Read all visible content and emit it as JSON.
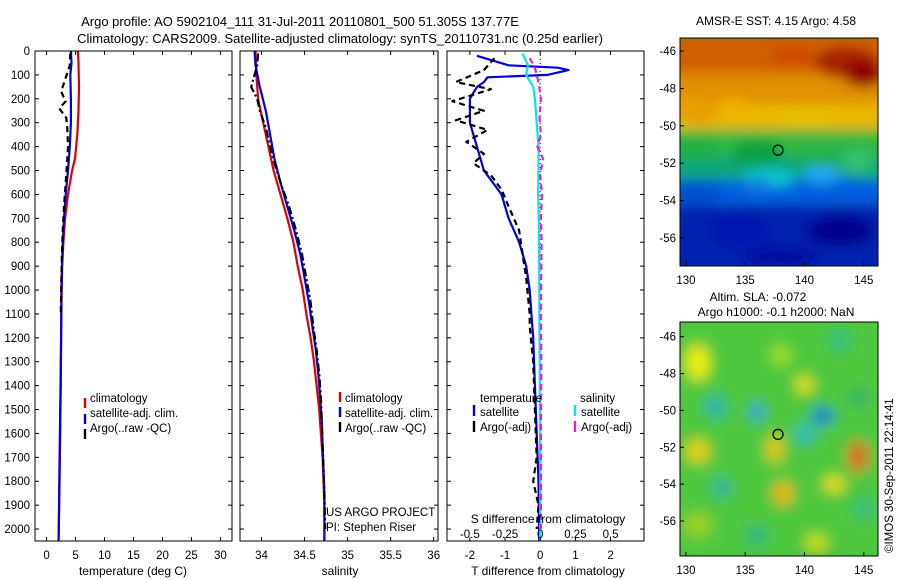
{
  "title_line1": "Argo profile: AO 5902104_111 31-Jul-2011 20110801_500 51.305S 137.77E",
  "title_line2": "Climatology: CARS2009. Satellite-adjusted climatology: synTS_20110731.nc (0.25d earlier)",
  "side_credit": "©IMOS 30-Sep-2011 22:14:41",
  "chart_data": [
    {
      "id": "temperature",
      "type": "line",
      "xlabel": "temperature (deg C)",
      "ylabel": "",
      "xlim": [
        -2,
        32
      ],
      "ylim": [
        2050,
        0
      ],
      "xticks": [
        0,
        5,
        10,
        15,
        20,
        25,
        30
      ],
      "yticks": [
        0,
        100,
        200,
        300,
        400,
        500,
        600,
        700,
        800,
        900,
        1000,
        1100,
        1200,
        1300,
        1400,
        1500,
        1600,
        1700,
        1800,
        1900,
        2000
      ],
      "legend": [
        "climatology",
        "satellite-adj. clim.",
        "Argo(..raw -QC)"
      ],
      "series": [
        {
          "name": "climatology",
          "color": "#e00000",
          "dash": "solid",
          "points": [
            [
              5.4,
              0
            ],
            [
              5.5,
              50
            ],
            [
              5.6,
              150
            ],
            [
              5.5,
              250
            ],
            [
              5.3,
              350
            ],
            [
              4.9,
              450
            ],
            [
              4.4,
              500
            ],
            [
              3.7,
              600
            ],
            [
              3.2,
              700
            ],
            [
              2.9,
              800
            ],
            [
              2.7,
              900
            ],
            [
              2.6,
              1000
            ],
            [
              2.5,
              1200
            ],
            [
              2.45,
              1400
            ],
            [
              2.35,
              1600
            ],
            [
              2.25,
              1800
            ],
            [
              2.1,
              2000
            ],
            [
              2.05,
              2050
            ]
          ]
        },
        {
          "name": "satellite-adj. clim.",
          "color": "#0000e0",
          "dash": "solid",
          "points": [
            [
              4.2,
              0
            ],
            [
              4.3,
              50
            ],
            [
              4.1,
              100
            ],
            [
              4.2,
              200
            ],
            [
              4.2,
              300
            ],
            [
              4.0,
              400
            ],
            [
              3.7,
              500
            ],
            [
              3.3,
              600
            ],
            [
              3.0,
              700
            ],
            [
              2.8,
              800
            ],
            [
              2.65,
              900
            ],
            [
              2.55,
              1000
            ],
            [
              2.5,
              1200
            ],
            [
              2.4,
              1400
            ],
            [
              2.3,
              1600
            ],
            [
              2.2,
              1800
            ],
            [
              2.1,
              2000
            ],
            [
              2.05,
              2050
            ]
          ]
        },
        {
          "name": "Argo(..raw -QC)",
          "color": "#000000",
          "dash": "dash",
          "points": [
            [
              4.1,
              10
            ],
            [
              4.0,
              60
            ],
            [
              3.2,
              120
            ],
            [
              2.5,
              170
            ],
            [
              3.3,
              210
            ],
            [
              2.2,
              240
            ],
            [
              3.4,
              280
            ],
            [
              3.6,
              330
            ],
            [
              3.7,
              400
            ],
            [
              3.5,
              480
            ],
            [
              3.3,
              550
            ],
            [
              3.0,
              650
            ],
            [
              2.8,
              750
            ],
            [
              2.65,
              850
            ],
            [
              2.55,
              950
            ],
            [
              2.45,
              1100
            ]
          ]
        }
      ]
    },
    {
      "id": "salinity",
      "type": "line",
      "xlabel": "salinity",
      "ylabel": "",
      "xlim": [
        33.75,
        36.05
      ],
      "ylim": [
        2050,
        0
      ],
      "xticks": [
        34,
        34.5,
        35,
        35.5,
        36
      ],
      "xticklabels": [
        "34",
        "34.5",
        "35",
        "35.5",
        "36"
      ],
      "legend": [
        "climatology",
        "satellite-adj. clim.",
        "Argo(..raw -QC)"
      ],
      "annotations": [
        "US ARGO PROJECT",
        "PI: Stephen Riser"
      ],
      "series": [
        {
          "name": "climatology",
          "color": "#e00000",
          "dash": "solid",
          "points": [
            [
              33.93,
              0
            ],
            [
              33.94,
              100
            ],
            [
              33.96,
              200
            ],
            [
              34.02,
              300
            ],
            [
              34.08,
              400
            ],
            [
              34.14,
              500
            ],
            [
              34.22,
              600
            ],
            [
              34.3,
              700
            ],
            [
              34.37,
              800
            ],
            [
              34.42,
              900
            ],
            [
              34.48,
              1000
            ],
            [
              34.52,
              1100
            ],
            [
              34.57,
              1200
            ],
            [
              34.61,
              1300
            ],
            [
              34.64,
              1400
            ],
            [
              34.67,
              1500
            ],
            [
              34.69,
              1600
            ],
            [
              34.71,
              1700
            ],
            [
              34.72,
              1800
            ],
            [
              34.73,
              1900
            ],
            [
              34.73,
              2050
            ]
          ]
        },
        {
          "name": "satellite-adj. clim.",
          "color": "#0000e0",
          "dash": "solid",
          "points": [
            [
              33.92,
              0
            ],
            [
              33.93,
              60
            ],
            [
              33.98,
              150
            ],
            [
              34.05,
              250
            ],
            [
              34.1,
              350
            ],
            [
              34.15,
              450
            ],
            [
              34.22,
              550
            ],
            [
              34.3,
              650
            ],
            [
              34.38,
              750
            ],
            [
              34.45,
              850
            ],
            [
              34.5,
              950
            ],
            [
              34.55,
              1050
            ],
            [
              34.59,
              1150
            ],
            [
              34.63,
              1250
            ],
            [
              34.66,
              1350
            ],
            [
              34.68,
              1450
            ],
            [
              34.7,
              1550
            ],
            [
              34.71,
              1650
            ],
            [
              34.72,
              1750
            ],
            [
              34.73,
              1850
            ],
            [
              34.73,
              2050
            ]
          ]
        },
        {
          "name": "Argo(..raw -QC)",
          "color": "#000000",
          "dash": "dashdot",
          "points": [
            [
              33.96,
              10
            ],
            [
              33.95,
              60
            ],
            [
              33.88,
              150
            ],
            [
              33.95,
              200
            ],
            [
              33.98,
              250
            ],
            [
              34.05,
              320
            ],
            [
              34.1,
              400
            ],
            [
              34.15,
              470
            ],
            [
              34.22,
              550
            ],
            [
              34.32,
              650
            ],
            [
              34.4,
              750
            ],
            [
              34.47,
              850
            ],
            [
              34.52,
              950
            ],
            [
              34.57,
              1050
            ],
            [
              34.6,
              1150
            ],
            [
              34.64,
              1250
            ],
            [
              34.67,
              1350
            ],
            [
              34.69,
              1450
            ],
            [
              34.7,
              1550
            ],
            [
              34.71,
              1650
            ],
            [
              34.72,
              1750
            ],
            [
              34.73,
              1850
            ],
            [
              34.74,
              2000
            ]
          ]
        }
      ]
    },
    {
      "id": "difference",
      "type": "line",
      "xlabel": "T difference from climatology",
      "xlabel_top": "S difference from climatology",
      "xlim": [
        -2.65,
        2.95
      ],
      "ylim": [
        2050,
        0
      ],
      "xticks": [
        -2,
        -1,
        0,
        1,
        2
      ],
      "xticklabels": [
        "-2",
        "-1",
        "0",
        "1",
        "2"
      ],
      "sticks": [
        -0.5,
        -0.25,
        0,
        0.25,
        0.5
      ],
      "sticklabels": [
        "-0.5",
        "-0.25",
        "0",
        "0.25",
        "0.5"
      ],
      "legend_headers": [
        "temperature",
        "salinity"
      ],
      "legend": [
        "satellite",
        "Argo(-adj)",
        "satellite",
        "Argo(-adj)"
      ],
      "series": [
        {
          "name": "satellite",
          "color": "#0000e0",
          "dash": "solid",
          "points": [
            [
              -1.8,
              20
            ],
            [
              -0.9,
              60
            ],
            [
              0.5,
              70
            ],
            [
              0.8,
              80
            ],
            [
              0.2,
              100
            ],
            [
              -1.5,
              110
            ],
            [
              -1.6,
              130
            ],
            [
              -1.8,
              150
            ],
            [
              -2.0,
              200
            ],
            [
              -2.0,
              300
            ],
            [
              -1.8,
              400
            ],
            [
              -1.6,
              500
            ],
            [
              -1.3,
              560
            ],
            [
              -1.1,
              600
            ],
            [
              -0.9,
              700
            ],
            [
              -0.6,
              800
            ],
            [
              -0.4,
              900
            ],
            [
              -0.3,
              1000
            ],
            [
              -0.25,
              1100
            ],
            [
              -0.2,
              1200
            ],
            [
              -0.15,
              1400
            ],
            [
              -0.1,
              1600
            ],
            [
              -0.05,
              1800
            ],
            [
              -0.03,
              2050
            ]
          ]
        },
        {
          "name": "Argo(-adj)",
          "color": "#000000",
          "dash": "dash",
          "points": [
            [
              -1.3,
              30
            ],
            [
              -1.6,
              80
            ],
            [
              -2.4,
              130
            ],
            [
              -1.4,
              160
            ],
            [
              -2.5,
              210
            ],
            [
              -1.6,
              250
            ],
            [
              -2.4,
              290
            ],
            [
              -1.5,
              330
            ],
            [
              -2.1,
              380
            ],
            [
              -1.6,
              430
            ],
            [
              -1.9,
              470
            ],
            [
              -1.4,
              520
            ],
            [
              -1.1,
              580
            ],
            [
              -0.9,
              650
            ],
            [
              -0.6,
              750
            ],
            [
              -0.5,
              850
            ],
            [
              -0.4,
              950
            ],
            [
              -0.3,
              1100
            ],
            [
              -0.3,
              1150
            ],
            [
              -0.2,
              1300
            ],
            [
              -0.15,
              1500
            ],
            [
              -0.1,
              1700
            ],
            [
              -0.2,
              1800
            ],
            [
              -0.05,
              1900
            ],
            [
              -0.1,
              2000
            ]
          ]
        },
        {
          "name": "satellite",
          "color": "#00e8e8",
          "dash": "solid",
          "points": [
            [
              -0.5,
              10
            ],
            [
              -0.35,
              60
            ],
            [
              -0.4,
              100
            ],
            [
              -0.2,
              150
            ],
            [
              -0.15,
              200
            ],
            [
              -0.1,
              300
            ],
            [
              -0.05,
              400
            ],
            [
              -0.05,
              500
            ],
            [
              -0.06,
              600
            ],
            [
              -0.04,
              700
            ],
            [
              -0.03,
              900
            ],
            [
              -0.02,
              1200
            ],
            [
              -0.01,
              1500
            ],
            [
              0.0,
              1800
            ],
            [
              0.0,
              2050
            ]
          ]
        },
        {
          "name": "Argo(-adj)",
          "color": "#e020e0",
          "dash": "dash",
          "points": [
            [
              -0.3,
              30
            ],
            [
              -0.15,
              70
            ],
            [
              -0.05,
              130
            ],
            [
              0.02,
              200
            ],
            [
              -0.02,
              280
            ],
            [
              0.02,
              350
            ],
            [
              -0.08,
              400
            ],
            [
              0.08,
              450
            ],
            [
              0.0,
              520
            ],
            [
              0.05,
              600
            ],
            [
              0.02,
              700
            ],
            [
              0.04,
              800
            ],
            [
              0.03,
              900
            ],
            [
              0.02,
              1100
            ],
            [
              0.03,
              1300
            ],
            [
              0.02,
              1600
            ],
            [
              0.02,
              1900
            ],
            [
              0.02,
              2000
            ]
          ]
        }
      ]
    },
    {
      "id": "sst_map",
      "type": "heatmap",
      "title": "AMSR-E SST: 4.15 Argo: 4.58",
      "xlim": [
        129.5,
        146.2
      ],
      "ylim": [
        -57.5,
        -45.3
      ],
      "xticks": [
        130,
        135,
        140,
        145
      ],
      "yticks": [
        -46,
        -48,
        -50,
        -52,
        -54,
        -56
      ],
      "marker": [
        137.77,
        -51.3
      ]
    },
    {
      "id": "sla_map",
      "type": "heatmap",
      "title_line1": "Altim. SLA: -0.072",
      "title_line2": "Argo h1000: -0.1 h2000: NaN",
      "xlim": [
        129.5,
        146.2
      ],
      "ylim": [
        -57.9,
        -45.2
      ],
      "xticks": [
        130,
        135,
        140,
        145
      ],
      "yticks": [
        -46,
        -48,
        -50,
        -52,
        -54,
        -56
      ],
      "marker": [
        137.77,
        -51.3
      ]
    }
  ]
}
